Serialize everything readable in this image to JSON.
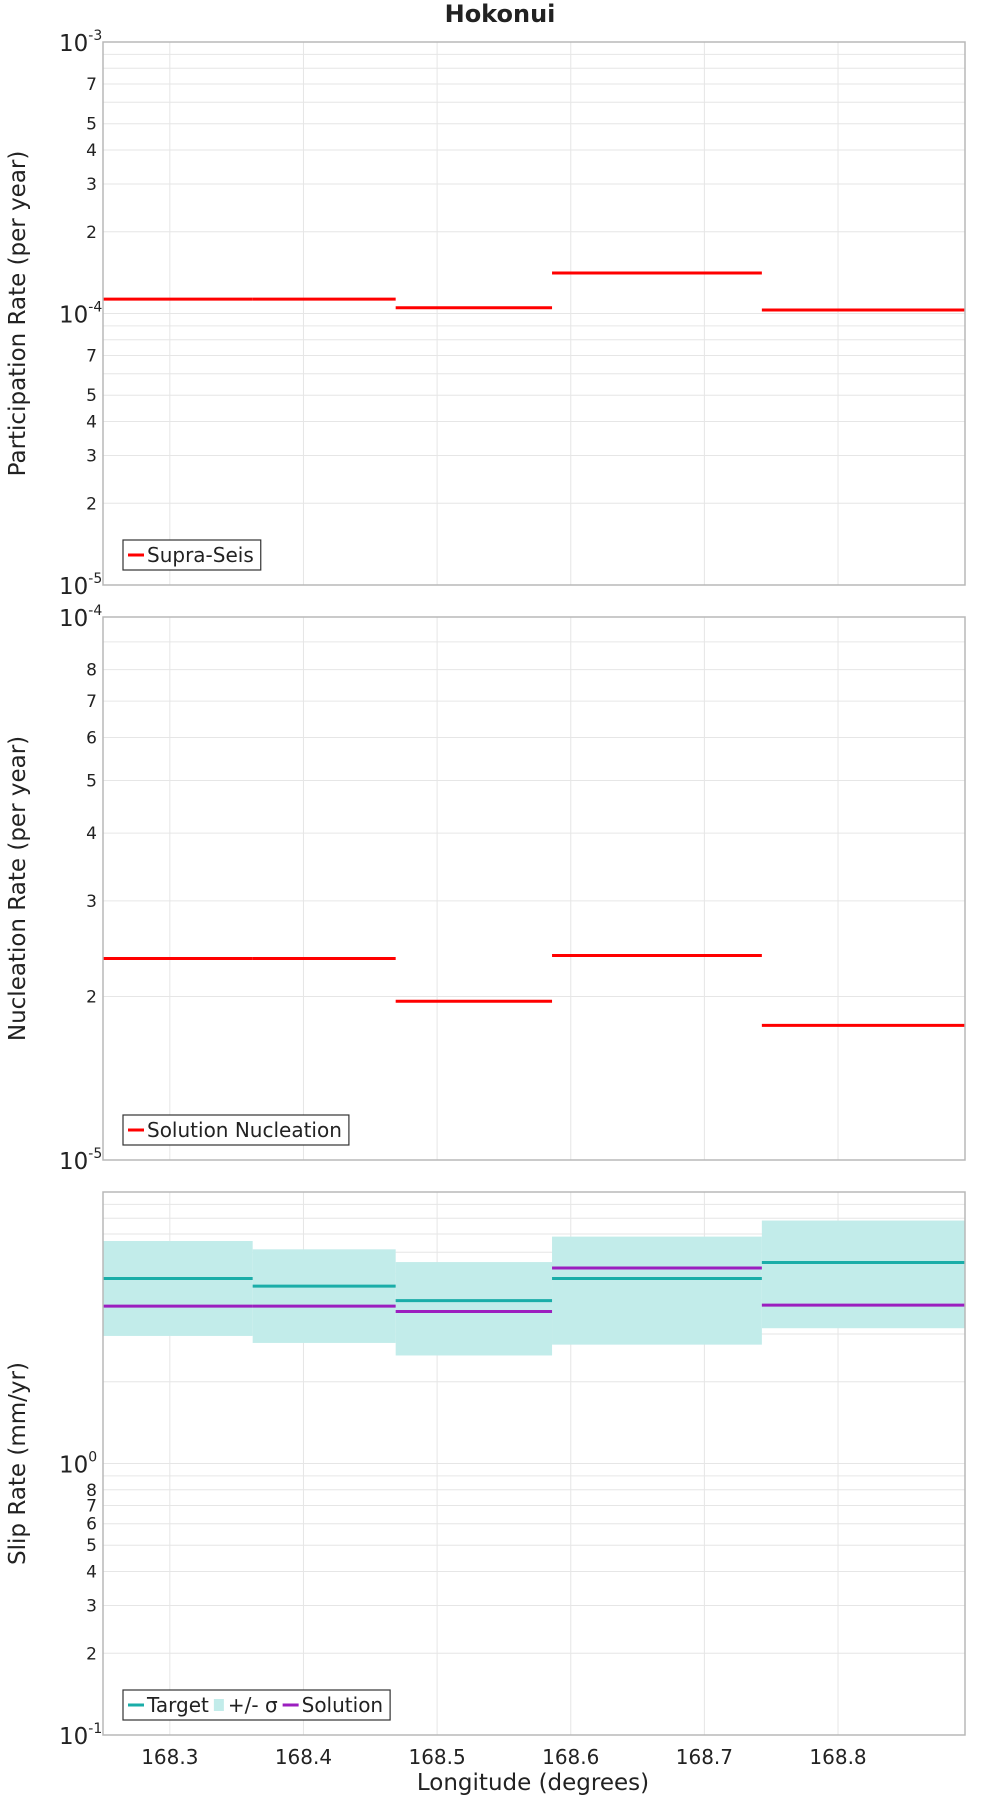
{
  "title": "Hokonui",
  "xlabel": "Longitude (degrees)",
  "colors": {
    "supra": "#ff0000",
    "nucleation": "#ff0000",
    "target": "#1aada8",
    "solution": "#9b1fbf",
    "sigma_band": "#c2ecea"
  },
  "chart_data": [
    {
      "type": "line",
      "step": true,
      "ylabel": "Participation Rate (per year)",
      "yscale": "log",
      "ylim": [
        1e-05,
        0.001
      ],
      "xlim": [
        168.25,
        168.895
      ],
      "x_ticks": [
        "168.3",
        "168.4",
        "168.5",
        "168.6",
        "168.7",
        "168.8"
      ],
      "y_tick_labels": {
        "major": [
          {
            "base": "10",
            "exp": "-3"
          },
          {
            "base": "10",
            "exp": "-4"
          },
          {
            "base": "10",
            "exp": "-5"
          }
        ],
        "minor_upper": [
          "7",
          "5",
          "4",
          "3",
          "2"
        ],
        "minor_lower": [
          "7",
          "5",
          "4",
          "3",
          "2"
        ]
      },
      "legend_position": "bottom-left",
      "series": [
        {
          "name": "Supra-Seis",
          "segments": [
            {
              "x0": 168.25,
              "x1": 168.362,
              "y": 0.000113
            },
            {
              "x0": 168.362,
              "x1": 168.469,
              "y": 0.000113
            },
            {
              "x0": 168.469,
              "x1": 168.586,
              "y": 0.000105
            },
            {
              "x0": 168.586,
              "x1": 168.743,
              "y": 0.000141
            },
            {
              "x0": 168.743,
              "x1": 168.895,
              "y": 0.000103
            }
          ]
        }
      ]
    },
    {
      "type": "line",
      "step": true,
      "ylabel": "Nucleation Rate (per year)",
      "yscale": "log",
      "ylim": [
        1e-05,
        0.0001
      ],
      "xlim": [
        168.25,
        168.895
      ],
      "x_ticks": [
        "168.3",
        "168.4",
        "168.5",
        "168.6",
        "168.7",
        "168.8"
      ],
      "y_tick_labels": {
        "major": [
          {
            "base": "10",
            "exp": "-4"
          },
          {
            "base": "10",
            "exp": "-5"
          }
        ],
        "minor": [
          "8",
          "7",
          "6",
          "5",
          "4",
          "3",
          "2"
        ]
      },
      "legend_position": "bottom-left",
      "series": [
        {
          "name": "Solution Nucleation",
          "segments": [
            {
              "x0": 168.25,
              "x1": 168.362,
              "y": 2.35e-05
            },
            {
              "x0": 168.362,
              "x1": 168.469,
              "y": 2.35e-05
            },
            {
              "x0": 168.469,
              "x1": 168.586,
              "y": 1.96e-05
            },
            {
              "x0": 168.586,
              "x1": 168.743,
              "y": 2.38e-05
            },
            {
              "x0": 168.743,
              "x1": 168.895,
              "y": 1.77e-05
            }
          ]
        }
      ]
    },
    {
      "type": "line",
      "step": true,
      "ylabel": "Slip Rate (mm/yr)",
      "yscale": "log",
      "ylim": [
        0.1,
        10
      ],
      "xlim": [
        168.25,
        168.895
      ],
      "x_ticks": [
        "168.3",
        "168.4",
        "168.5",
        "168.6",
        "168.7",
        "168.8"
      ],
      "y_tick_labels": {
        "major": [
          {
            "base": "10",
            "exp": "0"
          },
          {
            "base": "10",
            "exp": "-1"
          }
        ],
        "minor": [
          "8",
          "7",
          "6",
          "5",
          "4",
          "3",
          "2"
        ]
      },
      "legend_position": "bottom-left",
      "band": {
        "name": "+/- σ",
        "segments": [
          {
            "x0": 168.25,
            "x1": 168.362,
            "low": 2.95,
            "high": 6.6
          },
          {
            "x0": 168.362,
            "x1": 168.469,
            "low": 2.78,
            "high": 6.15
          },
          {
            "x0": 168.469,
            "x1": 168.586,
            "low": 2.5,
            "high": 5.52
          },
          {
            "x0": 168.586,
            "x1": 168.743,
            "low": 2.74,
            "high": 6.85
          },
          {
            "x0": 168.743,
            "x1": 168.895,
            "low": 3.15,
            "high": 7.85
          }
        ]
      },
      "series": [
        {
          "name": "Target",
          "segments": [
            {
              "x0": 168.25,
              "x1": 168.362,
              "y": 4.8
            },
            {
              "x0": 168.362,
              "x1": 168.469,
              "y": 4.5
            },
            {
              "x0": 168.469,
              "x1": 168.586,
              "y": 3.98
            },
            {
              "x0": 168.586,
              "x1": 168.743,
              "y": 4.8
            },
            {
              "x0": 168.743,
              "x1": 168.895,
              "y": 5.5
            }
          ]
        },
        {
          "name": "Solution",
          "segments": [
            {
              "x0": 168.25,
              "x1": 168.362,
              "y": 3.8
            },
            {
              "x0": 168.362,
              "x1": 168.469,
              "y": 3.8
            },
            {
              "x0": 168.469,
              "x1": 168.586,
              "y": 3.63
            },
            {
              "x0": 168.586,
              "x1": 168.743,
              "y": 5.25
            },
            {
              "x0": 168.743,
              "x1": 168.895,
              "y": 3.83
            }
          ]
        }
      ]
    }
  ]
}
